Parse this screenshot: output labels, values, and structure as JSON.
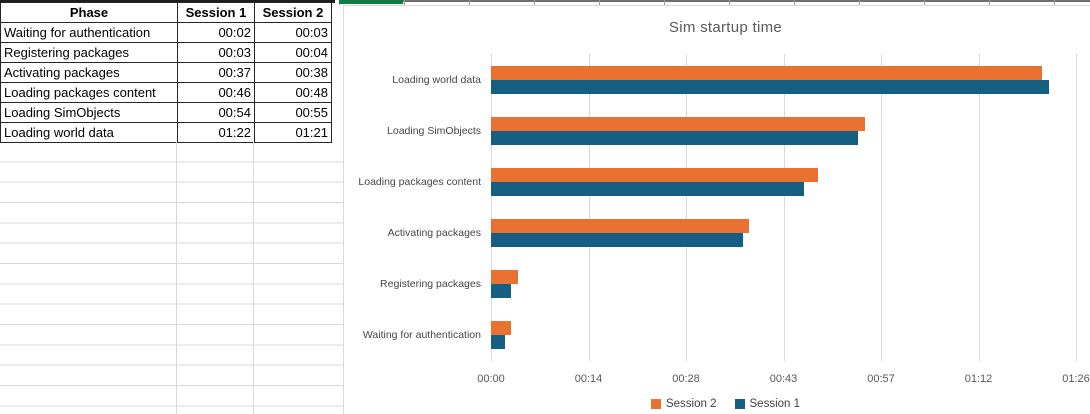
{
  "sheet": {
    "selected_column_highlight_color": "#107C41",
    "gridline_color": "#d8d8d8"
  },
  "table": {
    "columns": [
      "Phase",
      "Session 1",
      "Session 2"
    ],
    "rows": [
      {
        "phase": "Waiting for authentication",
        "session1": "00:02",
        "session2": "00:03"
      },
      {
        "phase": "Registering packages",
        "session1": "00:03",
        "session2": "00:04"
      },
      {
        "phase": "Activating packages",
        "session1": "00:37",
        "session2": "00:38"
      },
      {
        "phase": "Loading packages content",
        "session1": "00:46",
        "session2": "00:48"
      },
      {
        "phase": "Loading SimObjects",
        "session1": "00:54",
        "session2": "00:55"
      },
      {
        "phase": "Loading world data",
        "session1": "01:22",
        "session2": "01:21"
      }
    ]
  },
  "chart_data": {
    "type": "bar",
    "orientation": "horizontal",
    "title": "Sim startup time",
    "categories_top_to_bottom": [
      "Loading world data",
      "Loading SimObjects",
      "Loading packages content",
      "Activating packages",
      "Registering packages",
      "Waiting for authentication"
    ],
    "series": [
      {
        "name": "Session 1",
        "color": "#156082",
        "values_mmss": [
          "01:22",
          "00:54",
          "00:46",
          "00:37",
          "00:03",
          "00:02"
        ],
        "values_seconds": [
          82,
          54,
          46,
          37,
          3,
          2
        ]
      },
      {
        "name": "Session 2",
        "color": "#E97132",
        "values_mmss": [
          "01:21",
          "00:55",
          "00:48",
          "00:38",
          "00:04",
          "00:03"
        ],
        "values_seconds": [
          81,
          55,
          48,
          38,
          4,
          3
        ]
      }
    ],
    "x_axis": {
      "ticks": [
        "00:00",
        "00:14",
        "00:28",
        "00:43",
        "00:57",
        "01:12",
        "01:26"
      ],
      "min_seconds": 0,
      "max_seconds": 86
    },
    "grid": "vertical",
    "legend": {
      "position": "bottom",
      "order": [
        "Session 2",
        "Session 1"
      ]
    },
    "text_color": "#595959"
  }
}
